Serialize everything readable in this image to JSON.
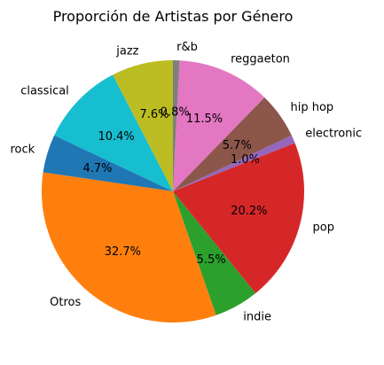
{
  "chart_data": {
    "type": "pie",
    "title": "Proporción de Artistas por Género",
    "start_angle_deg": 90,
    "direction": "counterclockwise",
    "value_unit": "%",
    "slices": [
      {
        "label": "jazz",
        "value": 7.6,
        "pct_label": "7.6%",
        "color": "#bcbd22"
      },
      {
        "label": "classical",
        "value": 10.4,
        "pct_label": "10.4%",
        "color": "#17becf"
      },
      {
        "label": "rock",
        "value": 4.7,
        "pct_label": "4.7%",
        "color": "#1f77b4"
      },
      {
        "label": "Otros",
        "value": 32.7,
        "pct_label": "32.7%",
        "color": "#ff7f0e"
      },
      {
        "label": "indie",
        "value": 5.5,
        "pct_label": "5.5%",
        "color": "#2ca02c"
      },
      {
        "label": "pop",
        "value": 20.2,
        "pct_label": "20.2%",
        "color": "#d62728"
      },
      {
        "label": "electronic",
        "value": 1.0,
        "pct_label": "1.0%",
        "color": "#9467bd"
      },
      {
        "label": "hip hop",
        "value": 5.7,
        "pct_label": "5.7%",
        "color": "#8c564b"
      },
      {
        "label": "reggaeton",
        "value": 11.5,
        "pct_label": "11.5%",
        "color": "#e377c2"
      },
      {
        "label": "r&b",
        "value": 0.8,
        "pct_label": "0.8%",
        "color": "#7f7f7f"
      }
    ]
  }
}
